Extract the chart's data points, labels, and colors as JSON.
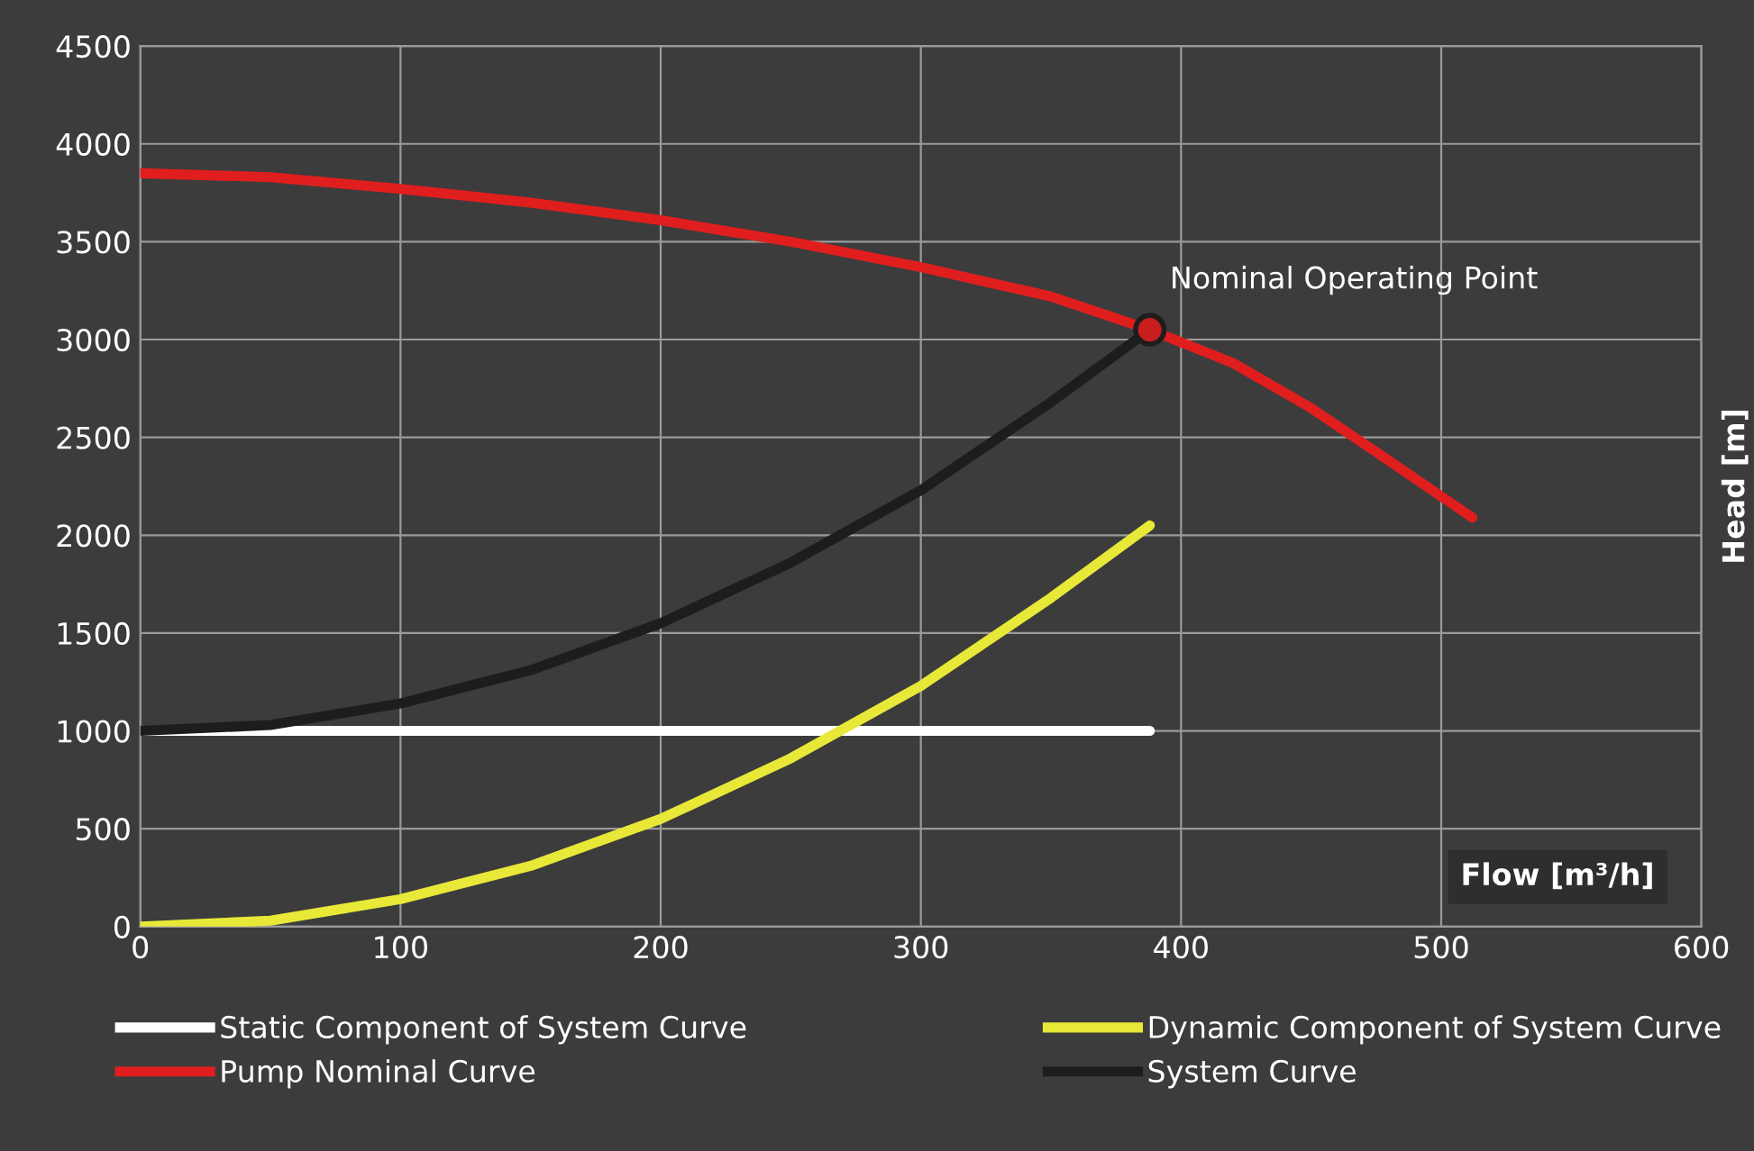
{
  "chart_data": {
    "type": "line",
    "xlabel": "Flow [m³/h]",
    "ylabel": "Head [m]",
    "xlim": [
      0,
      600
    ],
    "xticks": [
      0,
      100,
      200,
      300,
      400,
      500,
      600
    ],
    "ylim": [
      0,
      4500
    ],
    "yticks": [
      0,
      500,
      1000,
      1500,
      2000,
      2500,
      3000,
      3500,
      4000,
      4500
    ],
    "grid": true,
    "legend": "bottom",
    "marker": "none",
    "line_style": "solid",
    "series": [
      {
        "name": "Static Component of System Curve",
        "color": "#ffffff",
        "x": [
          0,
          388
        ],
        "values": [
          1000,
          1000
        ]
      },
      {
        "name": "Pump Nominal Curve",
        "color": "#e01e1e",
        "x": [
          0,
          50,
          100,
          150,
          200,
          250,
          300,
          350,
          388,
          420,
          450,
          480,
          512
        ],
        "values": [
          3850,
          3830,
          3770,
          3700,
          3610,
          3500,
          3370,
          3220,
          3050,
          2880,
          2650,
          2380,
          2090
        ]
      },
      {
        "name": "Dynamic Component of System Curve",
        "color": "#e8e838",
        "x": [
          0,
          50,
          100,
          150,
          200,
          250,
          300,
          350,
          388
        ],
        "values": [
          0,
          30,
          140,
          310,
          550,
          860,
          1230,
          1680,
          2050
        ]
      },
      {
        "name": "System Curve",
        "color": "#1e1c1c",
        "x": [
          0,
          50,
          100,
          150,
          200,
          250,
          300,
          350,
          388
        ],
        "values": [
          1000,
          1030,
          1140,
          1310,
          1550,
          1860,
          2230,
          2680,
          3050
        ]
      },
      {
        "type": "scatter",
        "color": "#c81e1e",
        "marker": "circle",
        "x": [
          388
        ],
        "values": [
          3050
        ]
      }
    ],
    "annotations": [
      {
        "text": "Nominal Operating Point",
        "x": 388,
        "y": 3050
      }
    ]
  }
}
